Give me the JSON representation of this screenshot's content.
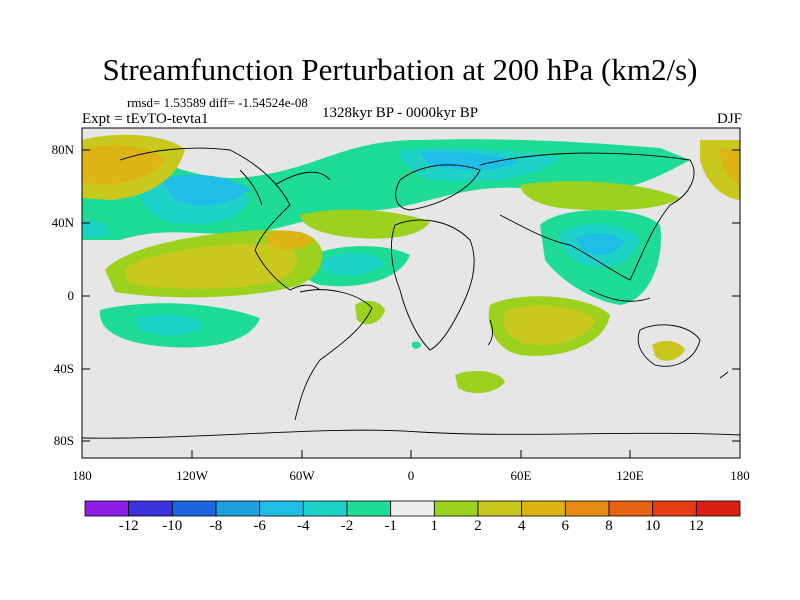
{
  "title": "Streamfunction Perturbation at 200 hPa (km2/s)",
  "stats_line": "rmsd= 1.53589 diff= -1.54524e-08",
  "experiment": "Expt = tEvTO-tevta1",
  "period": "1328kyr BP - 0000kyr BP",
  "season": "DJF",
  "map": {
    "lat_ticks": [
      "80N",
      "40N",
      "0",
      "40S",
      "80S"
    ],
    "lon_ticks": [
      "180",
      "120W",
      "60W",
      "0",
      "60E",
      "120E",
      "180"
    ]
  },
  "colorbar": {
    "labels": [
      "-12",
      "-10",
      "-8",
      "-6",
      "-4",
      "-2",
      "-1",
      "1",
      "2",
      "4",
      "6",
      "8",
      "10",
      "12"
    ],
    "colors": [
      "#8c1ee6",
      "#3c32dc",
      "#1e64dc",
      "#1ea0dc",
      "#1ebee6",
      "#1ed2c8",
      "#1edc96",
      "#eeeeee",
      "#9cd21e",
      "#c8c81e",
      "#dcb414",
      "#e68c14",
      "#e66414",
      "#e63c14",
      "#dc1e14"
    ]
  }
}
